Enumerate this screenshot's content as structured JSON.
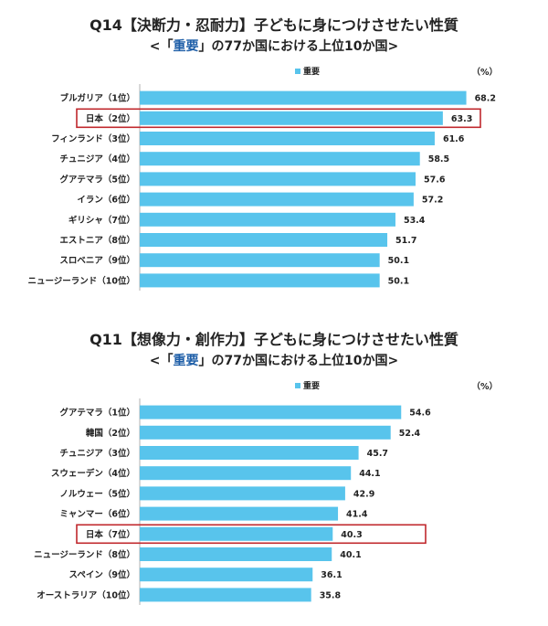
{
  "chart_data": [
    {
      "type": "bar",
      "orientation": "horizontal",
      "title": "Q14【決断力・忍耐力】子どもに身につけさせたい性質",
      "subtitle_pre": "<「",
      "subtitle_hl": "重要",
      "subtitle_post": "」の77か国における上位10か国>",
      "legend": "重要",
      "unit": "（%）",
      "categories": [
        "ブルガリア（1位）",
        "日本（2位）",
        "フィンランド（3位）",
        "チュニジア（4位）",
        "グアテマラ（5位）",
        "イラン（6位）",
        "ギリシャ（7位）",
        "エストニア（8位）",
        "スロベニア（9位）",
        "ニュージーランド（10位）"
      ],
      "values": [
        68.2,
        63.3,
        61.6,
        58.5,
        57.6,
        57.2,
        53.4,
        51.7,
        50.1,
        50.1
      ],
      "value_labels": [
        "68.2",
        "63.3",
        "61.6",
        "58.5",
        "57.6",
        "57.2",
        "53.4",
        "51.7",
        "50.1",
        "50.1"
      ],
      "highlight_index": 1,
      "bar_color": "#58c4ec",
      "highlight_color": "#c0282d"
    },
    {
      "type": "bar",
      "orientation": "horizontal",
      "title": "Q11【想像力・創作力】子どもに身につけさせたい性質",
      "subtitle_pre": "<「",
      "subtitle_hl": "重要",
      "subtitle_post": "」の77か国における上位10か国>",
      "legend": "重要",
      "unit": "（%）",
      "categories": [
        "グアテマラ（1位）",
        "韓国（2位）",
        "チュニジア（3位）",
        "スウェーデン（4位）",
        "ノルウェー（5位）",
        "ミャンマー（6位）",
        "日本（7位）",
        "ニュージーランド（8位）",
        "スペイン（9位）",
        "オーストラリア（10位）"
      ],
      "values": [
        54.6,
        52.4,
        45.7,
        44.1,
        42.9,
        41.4,
        40.3,
        40.1,
        36.1,
        35.8
      ],
      "value_labels": [
        "54.6",
        "52.4",
        "45.7",
        "44.1",
        "42.9",
        "41.4",
        "40.3",
        "40.1",
        "36.1",
        "35.8"
      ],
      "highlight_index": 6,
      "bar_color": "#58c4ec",
      "highlight_color": "#c0282d"
    }
  ]
}
